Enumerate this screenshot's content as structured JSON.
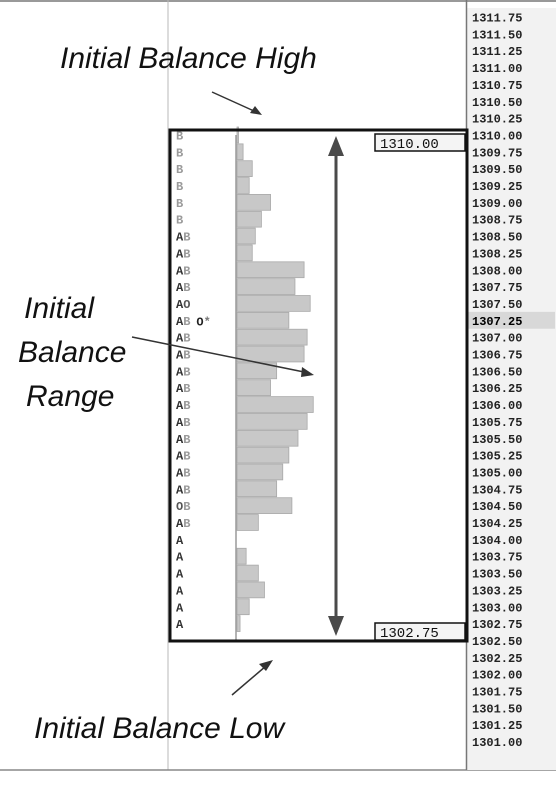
{
  "chart_data": {
    "type": "bar",
    "orientation": "horizontal",
    "title": "",
    "xlabel": "",
    "ylabel": "",
    "prices": [
      "1311.75",
      "1311.50",
      "1311.25",
      "1311.00",
      "1310.75",
      "1310.50",
      "1310.25",
      "1310.00",
      "1309.75",
      "1309.50",
      "1309.25",
      "1309.00",
      "1308.75",
      "1308.50",
      "1308.25",
      "1308.00",
      "1307.75",
      "1307.50",
      "1307.25",
      "1307.00",
      "1306.75",
      "1306.50",
      "1306.25",
      "1306.00",
      "1305.75",
      "1305.50",
      "1305.25",
      "1305.00",
      "1304.75",
      "1304.50",
      "1304.25",
      "1304.00",
      "1303.75",
      "1303.50",
      "1303.25",
      "1303.00",
      "1302.75",
      "1302.50",
      "1302.25",
      "1302.00",
      "1301.75",
      "1301.50",
      "1301.25",
      "1301.00"
    ],
    "current_price": "1307.25",
    "profile": {
      "prices": [
        "1310.00",
        "1309.75",
        "1309.50",
        "1309.25",
        "1309.00",
        "1308.75",
        "1308.50",
        "1308.25",
        "1308.00",
        "1307.75",
        "1307.50",
        "1307.25",
        "1307.00",
        "1306.75",
        "1306.50",
        "1306.25",
        "1306.00",
        "1305.75",
        "1305.50",
        "1305.25",
        "1305.00",
        "1304.75",
        "1304.50",
        "1304.25",
        "1304.00",
        "1303.75",
        "1303.50",
        "1303.25",
        "1303.00",
        "1302.75"
      ],
      "tpo_letters": [
        "B",
        "B",
        "B",
        "B",
        "B",
        "B",
        "AB",
        "AB",
        "AB",
        "AB",
        "AO",
        "AB",
        "AB",
        "AB",
        "AB",
        "AB",
        "AB",
        "AB",
        "AB",
        "AB",
        "AB",
        "AB",
        "OB",
        "AB",
        "A",
        "A",
        "A",
        "A",
        "A",
        "A"
      ],
      "extra_marks": [
        null,
        null,
        null,
        null,
        null,
        null,
        null,
        null,
        null,
        null,
        null,
        "O*",
        null,
        null,
        null,
        null,
        null,
        null,
        null,
        null,
        null,
        null,
        null,
        null,
        null,
        null,
        null,
        null,
        null,
        null
      ],
      "volume": [
        0.25,
        1,
        2.5,
        2,
        5.5,
        4,
        3,
        2.5,
        11,
        9.5,
        12,
        8.5,
        11.5,
        11,
        6.5,
        5.5,
        12.5,
        11.5,
        10,
        8.5,
        7.5,
        6.5,
        9,
        3.5,
        0,
        1.5,
        3.5,
        4.5,
        2,
        0.5
      ]
    },
    "initial_balance": {
      "high": "1310.00",
      "low": "1302.75"
    },
    "annotations": {
      "high": "Initial Balance High",
      "range": [
        "Initial",
        "Balance",
        "Range"
      ],
      "low": "Initial Balance Low"
    }
  },
  "colors": {
    "bar": "#c8c8c8",
    "bar_stroke": "#a8a8a8",
    "box": "#111111",
    "arrow": "#4a4a4a",
    "price_scale_bg": "#f2f2f2",
    "current_highlight": "#d8d8d8"
  }
}
